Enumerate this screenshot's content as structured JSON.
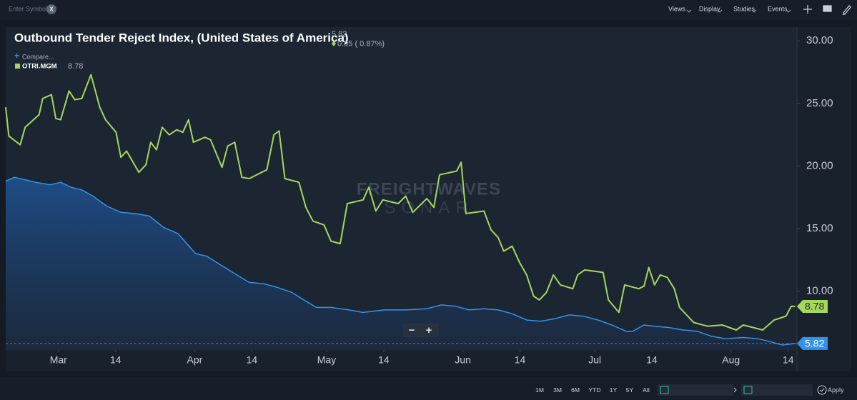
{
  "toolbar": {
    "symbol_placeholder": "Enter Symbol",
    "clear": "X",
    "menus": [
      "Views",
      "Display",
      "Studies",
      "Events"
    ]
  },
  "chart_data": {
    "type": "line",
    "title": "Outbound Tender Reject Index, (United States of America)",
    "change": "0.05 ( 0.87%)",
    "compare": "Compare...",
    "watermark": [
      "FREIGHTWAVES",
      "SONAR"
    ],
    "zoom": [
      "−",
      "+"
    ],
    "xlim": [
      -12,
      168
    ],
    "xticks": [
      {
        "value": 0,
        "label": "Mar"
      },
      {
        "value": 13,
        "label": "14"
      },
      {
        "value": 31,
        "label": "Apr"
      },
      {
        "value": 44,
        "label": "14"
      },
      {
        "value": 61,
        "label": "May"
      },
      {
        "value": 74,
        "label": "14"
      },
      {
        "value": 92,
        "label": "Jun"
      },
      {
        "value": 105,
        "label": "14"
      },
      {
        "value": 122,
        "label": "Jul"
      },
      {
        "value": 135,
        "label": "14"
      },
      {
        "value": 153,
        "label": "Aug"
      },
      {
        "value": 166,
        "label": "14"
      }
    ],
    "ylim": [
      5.3,
      31.1
    ],
    "yticks": [
      {
        "value": 10,
        "label": "10.00"
      },
      {
        "value": 15,
        "label": "15.00"
      },
      {
        "value": 20,
        "label": "20.00"
      },
      {
        "value": 25,
        "label": "25.00"
      },
      {
        "value": 30,
        "label": "30.00"
      }
    ],
    "grid": false,
    "series": [
      {
        "name": "OTRI.MGM",
        "color": "#a6d65c",
        "area": false,
        "x": [
          -12.0,
          -11.3,
          -8.7,
          -7.6,
          -4.4,
          -3.6,
          -1.6,
          -0.6,
          0.5,
          2.4,
          3.7,
          5.3,
          7.4,
          9.4,
          10.7,
          13.1,
          14.2,
          15.5,
          18.3,
          19.9,
          21.0,
          22.3,
          23.6,
          25.2,
          26.9,
          28.3,
          29.6,
          30.7,
          33.3,
          34.6,
          37.2,
          38.5,
          40.1,
          41.7,
          43.4,
          47.4,
          49.0,
          50.2,
          51.5,
          54.7,
          56.3,
          57.9,
          60.4,
          62.0,
          64.1,
          65.7,
          69.3,
          70.6,
          72.2,
          73.8,
          77.3,
          79.0,
          80.6,
          83.8,
          85.4,
          86.7,
          90.6,
          91.6,
          92.7,
          96.8,
          98.4,
          100.0,
          101.3,
          103.2,
          104.9,
          106.5,
          108.1,
          109.4,
          111.0,
          112.6,
          114.2,
          117.0,
          118.1,
          119.7,
          123.9,
          125.1,
          127.5,
          128.8,
          132.0,
          133.2,
          134.3,
          135.6,
          136.9,
          138.5,
          140.1,
          141.3,
          144.5,
          147.7,
          151.0,
          154.2,
          155.8,
          160.2,
          162.8,
          165.5,
          166.7,
          167.6
        ],
        "values": [
          24.7,
          22.4,
          21.7,
          23.1,
          24.1,
          25.4,
          25.7,
          23.8,
          23.7,
          26.0,
          25.3,
          25.4,
          27.3,
          24.7,
          23.7,
          22.7,
          20.7,
          21.2,
          19.5,
          20.1,
          21.9,
          21.3,
          23.1,
          22.5,
          22.9,
          22.7,
          23.7,
          21.9,
          22.3,
          22.1,
          19.9,
          21.6,
          21.9,
          19.1,
          19.0,
          19.7,
          22.5,
          22.8,
          19.0,
          18.7,
          16.7,
          15.6,
          15.3,
          14.0,
          13.8,
          17.0,
          17.3,
          18.3,
          16.4,
          17.3,
          17.0,
          17.6,
          16.3,
          17.4,
          16.7,
          19.3,
          19.6,
          20.3,
          16.2,
          16.4,
          14.9,
          14.3,
          13.2,
          13.6,
          12.3,
          11.3,
          9.6,
          9.3,
          9.9,
          11.3,
          10.5,
          10.2,
          11.3,
          11.7,
          11.5,
          9.3,
          8.3,
          10.5,
          10.2,
          10.4,
          11.9,
          10.5,
          11.3,
          11.1,
          10.2,
          8.7,
          7.5,
          7.2,
          7.3,
          6.9,
          7.3,
          6.9,
          7.7,
          8.0,
          8.8,
          8.78
        ]
      },
      {
        "color": "#3193ea",
        "area": true,
        "x": [
          -12.0,
          -10.0,
          -7.6,
          -5.2,
          -1.9,
          0.5,
          2.9,
          5.3,
          7.8,
          11.0,
          14.2,
          17.5,
          20.7,
          23.9,
          27.2,
          31.2,
          33.7,
          36.9,
          40.1,
          43.4,
          46.6,
          49.8,
          53.1,
          56.3,
          58.7,
          62.0,
          66.0,
          69.3,
          74.1,
          79.0,
          83.8,
          87.1,
          90.3,
          93.5,
          96.8,
          100.0,
          103.2,
          106.5,
          109.7,
          112.9,
          116.2,
          119.4,
          122.7,
          125.9,
          129.1,
          130.7,
          133.2,
          135.6,
          138.8,
          142.1,
          145.3,
          148.5,
          151.8,
          155.8,
          159.1,
          161.5,
          164.7,
          167.6
        ],
        "values": [
          18.8,
          19.1,
          18.9,
          18.7,
          18.5,
          18.7,
          18.3,
          18.1,
          17.6,
          16.8,
          16.3,
          16.2,
          16.0,
          15.1,
          14.6,
          13.0,
          12.8,
          12.1,
          11.4,
          10.7,
          10.6,
          10.3,
          9.9,
          9.2,
          8.7,
          8.7,
          8.5,
          8.3,
          8.5,
          8.5,
          8.6,
          8.9,
          8.8,
          8.5,
          8.6,
          8.5,
          8.2,
          7.7,
          7.6,
          7.8,
          8.1,
          8.0,
          7.7,
          7.3,
          6.8,
          6.8,
          7.3,
          7.2,
          7.1,
          6.9,
          6.8,
          6.4,
          6.2,
          6.3,
          6.2,
          6.0,
          5.7,
          5.82
        ]
      }
    ]
  },
  "range_bar": {
    "ranges": [
      "1M",
      "3M",
      "6M",
      "YTD",
      "1Y",
      "5Y",
      "All"
    ],
    "apply": "Apply"
  }
}
